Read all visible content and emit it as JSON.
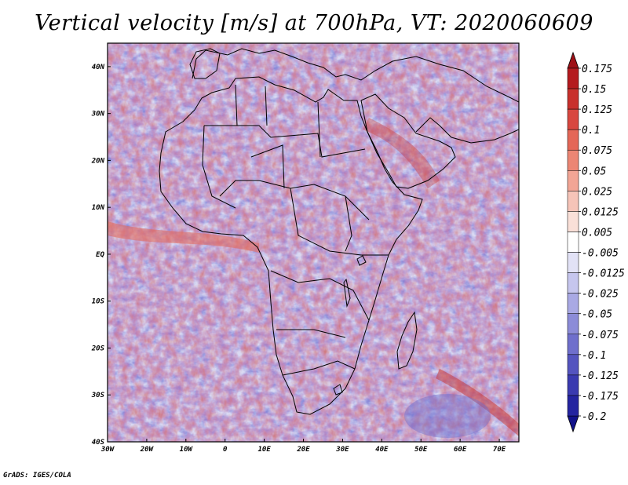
{
  "title": "Vertical velocity [m/s] at 700hPa, VT: 2020060609",
  "credit": "GrADS: IGES/COLA",
  "map": {
    "lon_range": [
      -30,
      75
    ],
    "lat_range": [
      -40,
      45
    ],
    "lat_labels": [
      "40N",
      "30N",
      "20N",
      "10N",
      "EQ",
      "10S",
      "20S",
      "30S",
      "40S"
    ],
    "lat_values": [
      40,
      30,
      20,
      10,
      0,
      -10,
      -20,
      -30,
      -40
    ],
    "lon_labels": [
      "30W",
      "20W",
      "10W",
      "0",
      "10E",
      "20E",
      "30E",
      "40E",
      "50E",
      "60E",
      "70E"
    ],
    "lon_values": [
      -30,
      -20,
      -10,
      0,
      10,
      20,
      30,
      40,
      50,
      60,
      70
    ]
  },
  "colorbar": {
    "labels": [
      "0.175",
      "0.15",
      "0.125",
      "0.1",
      "0.075",
      "0.05",
      "0.025",
      "0.0125",
      "0.005",
      "-0.005",
      "-0.0125",
      "-0.025",
      "-0.05",
      "-0.075",
      "-0.1",
      "-0.125",
      "-0.175",
      "-0.2"
    ],
    "colors": [
      "#b41a1e",
      "#c8302c",
      "#d8473f",
      "#e46757",
      "#ec8674",
      "#f2a595",
      "#f6c4b8",
      "#fae0d8",
      "#ffffff",
      "#e2e2f6",
      "#c6c6ee",
      "#a9a9e4",
      "#8c8cd8",
      "#6f6fcc",
      "#5454bf",
      "#3a3ab0",
      "#2424a0"
    ],
    "top_color": "#9e1016",
    "bottom_color": "#12128a"
  }
}
